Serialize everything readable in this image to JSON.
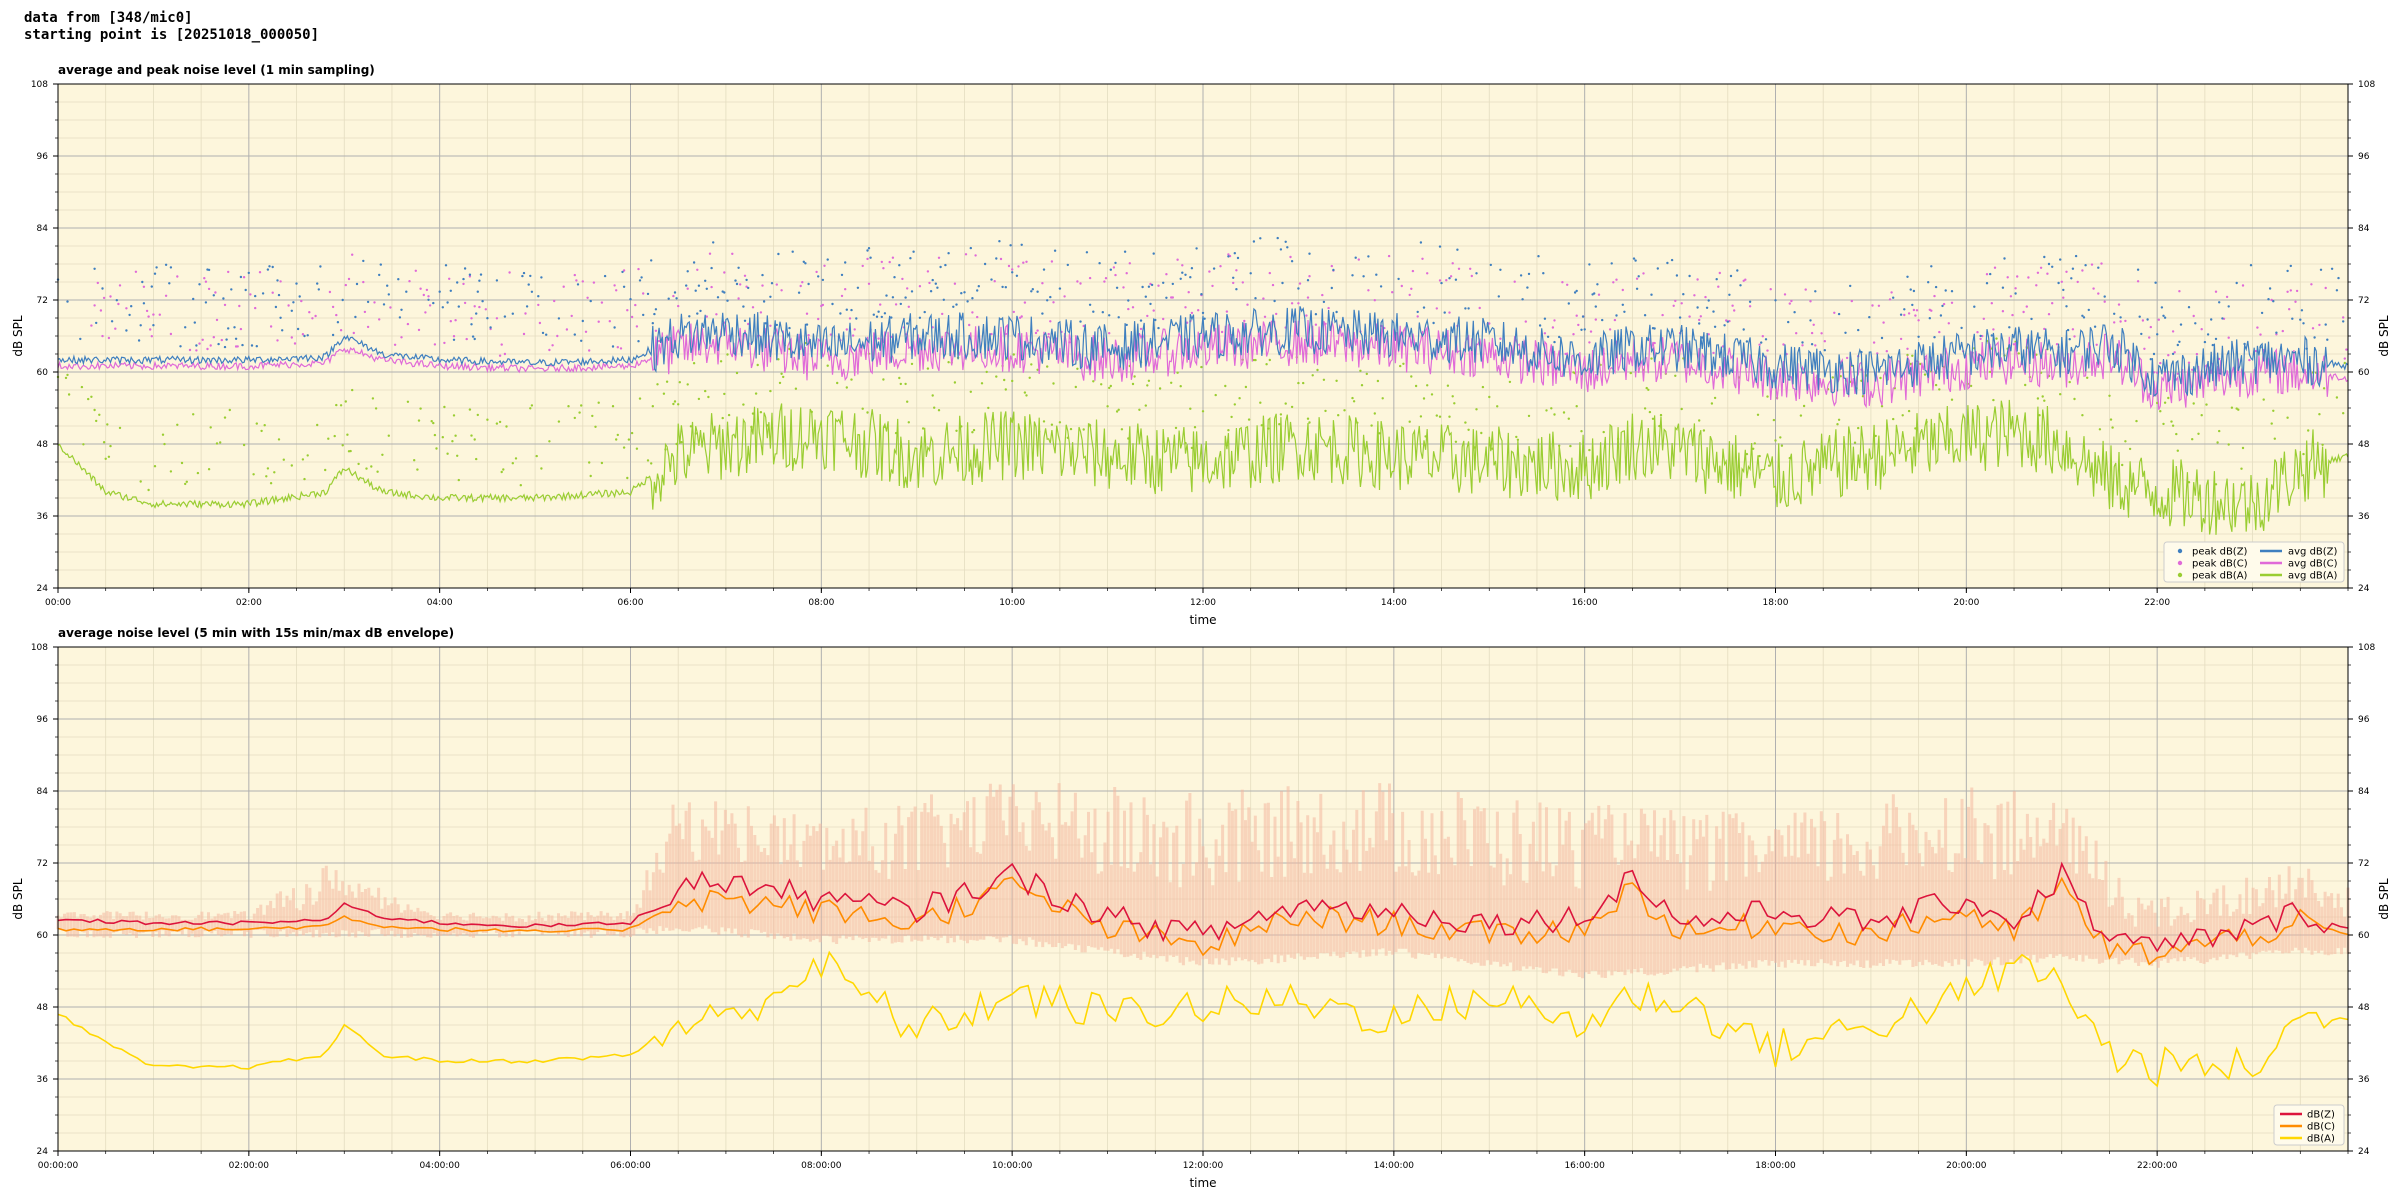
{
  "header": {
    "line1": "data from [348/mic0]",
    "line2": "starting point is [20251018_000050]"
  },
  "colors": {
    "plot_bg": "#fdf6dc",
    "zcolor": "#3f7fbf",
    "ccolor": "#e06ad8",
    "acolor": "#9acd32",
    "z2color": "#dc143c",
    "c2color": "#ff8c00",
    "a2color": "#ffd700",
    "envelope": "#f4b8a0"
  },
  "chart_data": [
    {
      "type": "line",
      "title": "average and peak noise level (1 min sampling)",
      "xlabel": "time",
      "ylabel": "dB SPL",
      "ylim": [
        24,
        108
      ],
      "xlim": [
        0,
        24
      ],
      "grid": true,
      "legend_position": "lower-right",
      "yticks": [
        "24",
        "36",
        "48",
        "60",
        "72",
        "84",
        "96",
        "108"
      ],
      "xticks": [
        "00:00",
        "02:00",
        "04:00",
        "06:00",
        "08:00",
        "10:00",
        "12:00",
        "14:00",
        "16:00",
        "18:00",
        "20:00",
        "22:00"
      ],
      "legend": [
        "peak dB(Z)",
        "peak dB(C)",
        "peak dB(A)",
        "avg dB(Z)",
        "avg dB(C)",
        "avg dB(A)"
      ],
      "series": [
        {
          "name": "avg dB(Z)",
          "x": [
            0,
            1,
            2,
            2.8,
            3,
            3.4,
            4,
            5,
            6,
            6.5,
            7,
            8,
            9,
            10,
            11,
            12,
            13,
            14,
            15,
            16,
            16.5,
            17,
            18,
            19,
            20,
            20.5,
            21,
            21.5,
            22,
            23,
            23.5,
            24
          ],
          "values": [
            62,
            62,
            62,
            62.5,
            66,
            63,
            62,
            61.5,
            62,
            66,
            67,
            64,
            66,
            66,
            64,
            66,
            67,
            66,
            65,
            62,
            64,
            64,
            61,
            60,
            63,
            64,
            63,
            65,
            59,
            62,
            62,
            61
          ]
        },
        {
          "name": "avg dB(C)",
          "x": [
            0,
            1,
            2,
            2.8,
            3,
            3.4,
            4,
            5,
            6,
            6.5,
            7,
            8,
            9,
            10,
            11,
            12,
            13,
            14,
            15,
            16,
            16.5,
            17,
            18,
            19,
            20,
            20.5,
            21,
            21.5,
            22,
            23,
            23.5,
            24
          ],
          "values": [
            61,
            61,
            61,
            61.5,
            64,
            62,
            61,
            60.5,
            61,
            64,
            65,
            62,
            64,
            64,
            62,
            64,
            65,
            64,
            63,
            60,
            62,
            62,
            59,
            58,
            61,
            62,
            61,
            63,
            57,
            60,
            60,
            59
          ]
        },
        {
          "name": "avg dB(A)",
          "x": [
            0,
            0.5,
            1,
            2,
            2.8,
            3,
            3.4,
            4,
            5,
            6,
            6.5,
            7,
            8,
            9,
            10,
            11,
            12,
            13,
            14,
            15,
            16,
            16.5,
            17,
            18,
            19,
            20,
            20.5,
            21,
            21.5,
            22,
            23,
            23.5,
            24
          ],
          "values": [
            48,
            40,
            38,
            38,
            40,
            44,
            40,
            39,
            39,
            40,
            46,
            48,
            50,
            46,
            48,
            46,
            45,
            48,
            46,
            45,
            44,
            48,
            47,
            42,
            46,
            49,
            50,
            48,
            42,
            40,
            38,
            44,
            46
          ]
        }
      ]
    },
    {
      "type": "line",
      "title": "average noise level (5 min with 15s min/max dB envelope)",
      "xlabel": "time",
      "ylabel": "dB SPL",
      "ylim": [
        24,
        108
      ],
      "xlim": [
        0,
        24
      ],
      "grid": true,
      "legend_position": "lower-right",
      "yticks": [
        "24",
        "36",
        "48",
        "60",
        "72",
        "84",
        "96",
        "108"
      ],
      "xticks": [
        "00:00:00",
        "02:00:00",
        "04:00:00",
        "06:00:00",
        "08:00:00",
        "10:00:00",
        "12:00:00",
        "14:00:00",
        "16:00:00",
        "18:00:00",
        "20:00:00",
        "22:00:00"
      ],
      "legend": [
        "dB(Z)",
        "dB(C)",
        "dB(A)"
      ],
      "series": [
        {
          "name": "dB(Z)",
          "x": [
            0,
            1,
            2,
            2.8,
            3,
            3.4,
            4,
            5,
            6,
            6.5,
            7,
            8,
            9,
            10,
            11,
            12,
            13,
            14,
            15,
            16,
            16.5,
            17,
            18,
            19,
            20,
            20.5,
            21,
            21.5,
            22,
            23,
            23.5,
            24
          ],
          "values": [
            62.5,
            62,
            62,
            62.5,
            65,
            63,
            62,
            61.5,
            62,
            68,
            69,
            66,
            64,
            70,
            63,
            60,
            65,
            64,
            62,
            63,
            70,
            62,
            64,
            62,
            66,
            62,
            70,
            59,
            58,
            61,
            64,
            61
          ]
        },
        {
          "name": "dB(C)",
          "x": [
            0,
            1,
            2,
            2.8,
            3,
            3.4,
            4,
            5,
            6,
            6.5,
            7,
            8,
            9,
            10,
            11,
            12,
            13,
            14,
            15,
            16,
            16.5,
            17,
            18,
            19,
            20,
            20.5,
            21,
            21.5,
            22,
            23,
            23.5,
            24
          ],
          "values": [
            61,
            61,
            61,
            61.5,
            63,
            61.5,
            61,
            60.5,
            61,
            66,
            66,
            64,
            62,
            68,
            61,
            58,
            63,
            62,
            60,
            61,
            68,
            60,
            62,
            60,
            64,
            60,
            68,
            57,
            57,
            60,
            62,
            60
          ]
        },
        {
          "name": "dB(A)",
          "x": [
            0,
            0.5,
            1,
            2,
            2.8,
            3,
            3.4,
            4,
            5,
            6,
            6.5,
            7,
            8,
            9,
            10,
            11,
            12,
            13,
            14,
            15,
            16,
            16.5,
            17,
            18,
            19,
            20,
            20.5,
            21,
            21.5,
            22,
            23,
            23.5,
            24
          ],
          "values": [
            47,
            42,
            38,
            38,
            40,
            45,
            40,
            39,
            39,
            40,
            45,
            46,
            55,
            44,
            50,
            47,
            48,
            49,
            46,
            50,
            45,
            50,
            49,
            41,
            45,
            50,
            55,
            52,
            40,
            38,
            38,
            46,
            46
          ]
        }
      ],
      "envelope": {
        "name": "15s min/max envelope",
        "x": [
          0,
          2,
          2.8,
          3.4,
          4,
          6,
          6.5,
          8,
          10,
          12,
          14,
          16,
          18,
          20,
          21,
          22,
          23.5,
          24
        ],
        "min": [
          61,
          61,
          61,
          61,
          61,
          61,
          62,
          60,
          60,
          56,
          58,
          54,
          56,
          56,
          57,
          56,
          58,
          58
        ],
        "max": [
          64,
          64,
          72,
          68,
          64,
          64,
          84,
          80,
          86,
          84,
          86,
          82,
          80,
          86,
          82,
          66,
          72,
          68
        ]
      }
    }
  ]
}
